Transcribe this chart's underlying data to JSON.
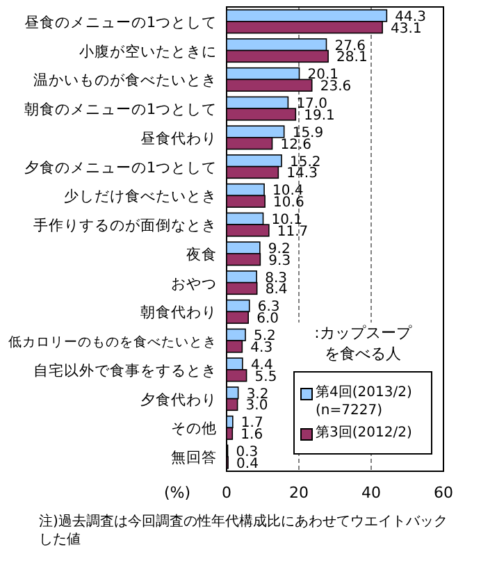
{
  "chart_data": {
    "type": "bar",
    "orientation": "horizontal",
    "categories": [
      "昼食のメニューの1つとして",
      "小腹が空いたときに",
      "温かいものが食べたいとき",
      "朝食のメニューの1つとして",
      "昼食代わり",
      "夕食のメニューの1つとして",
      "少しだけ食べたいとき",
      "手作りするのが面倒なとき",
      "夜食",
      "おやつ",
      "朝食代わり",
      "低カロリーのものを食べたいとき",
      "自宅以外で食事をするとき",
      "夕食代わり",
      "その他",
      "無回答"
    ],
    "series": [
      {
        "name": "第4回(2013/2) (n=7227)",
        "color": "#99ccff",
        "values": [
          44.3,
          27.6,
          20.1,
          17.0,
          15.9,
          15.2,
          10.4,
          10.1,
          9.2,
          8.3,
          6.3,
          5.2,
          4.4,
          3.2,
          1.7,
          0.3
        ],
        "value_labels": [
          "44.3",
          "27.6",
          "20.1",
          "17.0",
          "15.9",
          "15.2",
          "10.4",
          "10.1",
          "9.2",
          "8.3",
          "6.3",
          "5.2",
          "4.4",
          "3.2",
          "1.7",
          "0.3"
        ]
      },
      {
        "name": "第3回(2012/2)",
        "color": "#993366",
        "values": [
          43.1,
          28.1,
          23.6,
          19.1,
          12.6,
          14.3,
          10.6,
          11.7,
          9.3,
          8.4,
          6.0,
          4.3,
          5.5,
          3.0,
          1.6,
          0.4
        ],
        "value_labels": [
          "43.1",
          "28.1",
          "23.6",
          "19.1",
          "12.6",
          "14.3",
          "10.6",
          "11.7",
          "9.3",
          "8.4",
          "6.0",
          "4.3",
          "5.5",
          "3.0",
          "1.6",
          "0.4"
        ]
      }
    ],
    "xlim": [
      0,
      60
    ],
    "xticks": [
      0,
      20,
      40,
      60
    ],
    "xlabel": "(%)",
    "grid": "x",
    "legend": "bottom right",
    "legend_title": ":カップスープを食べる人",
    "annotations": [
      "注)過去調査は今回調査の性年代構成比にあわせてウエイトバックした値"
    ]
  }
}
